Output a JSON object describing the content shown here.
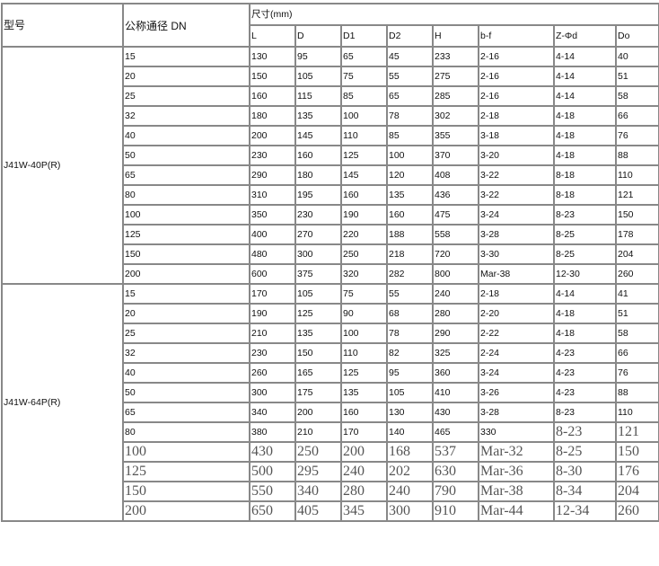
{
  "header": {
    "model": "型号",
    "dn": "公称通径 DN",
    "dimensions": "尺寸(mm)",
    "columns": [
      "L",
      "D",
      "D1",
      "D2",
      "H",
      "b-f",
      "Z-Φd",
      "Do"
    ]
  },
  "groups": [
    {
      "model": "J41W-40P(R)",
      "rows": [
        [
          "15",
          "130",
          "95",
          "65",
          "45",
          "233",
          "2-16",
          "4-14",
          "40"
        ],
        [
          "20",
          "150",
          "105",
          "75",
          "55",
          "275",
          "2-16",
          "4-14",
          "51"
        ],
        [
          "25",
          "160",
          "115",
          "85",
          "65",
          "285",
          "2-16",
          "4-14",
          "58"
        ],
        [
          "32",
          "180",
          "135",
          "100",
          "78",
          "302",
          "2-18",
          "4-18",
          "66"
        ],
        [
          "40",
          "200",
          "145",
          "110",
          "85",
          "355",
          "3-18",
          "4-18",
          "76"
        ],
        [
          "50",
          "230",
          "160",
          "125",
          "100",
          "370",
          "3-20",
          "4-18",
          "88"
        ],
        [
          "65",
          "290",
          "180",
          "145",
          "120",
          "408",
          "3-22",
          "8-18",
          "110"
        ],
        [
          "80",
          "310",
          "195",
          "160",
          "135",
          "436",
          "3-22",
          "8-18",
          "121"
        ],
        [
          "100",
          "350",
          "230",
          "190",
          "160",
          "475",
          "3-24",
          "8-23",
          "150"
        ],
        [
          "125",
          "400",
          "270",
          "220",
          "188",
          "558",
          "3-28",
          "8-25",
          "178"
        ],
        [
          "150",
          "480",
          "300",
          "250",
          "218",
          "720",
          "3-30",
          "8-25",
          "204"
        ],
        [
          "200",
          "600",
          "375",
          "320",
          "282",
          "800",
          "Mar-38",
          "12-30",
          "260"
        ]
      ]
    },
    {
      "model": "J41W-64P(R)",
      "rows": [
        [
          "15",
          "170",
          "105",
          "75",
          "55",
          "240",
          "2-18",
          "4-14",
          "41"
        ],
        [
          "20",
          "190",
          "125",
          "90",
          "68",
          "280",
          "2-20",
          "4-18",
          "51"
        ],
        [
          "25",
          "210",
          "135",
          "100",
          "78",
          "290",
          "2-22",
          "4-18",
          "58"
        ],
        [
          "32",
          "230",
          "150",
          "110",
          "82",
          "325",
          "2-24",
          "4-23",
          "66"
        ],
        [
          "40",
          "260",
          "165",
          "125",
          "95",
          "360",
          "3-24",
          "4-23",
          "76"
        ],
        [
          "50",
          "300",
          "175",
          "135",
          "105",
          "410",
          "3-26",
          "4-23",
          "88"
        ],
        [
          "65",
          "340",
          "200",
          "160",
          "130",
          "430",
          "3-28",
          "8-23",
          "110"
        ],
        [
          "80",
          "380",
          "210",
          "170",
          "140",
          "465",
          "330",
          "8-23",
          "121"
        ],
        [
          "100",
          "430",
          "250",
          "200",
          "168",
          "537",
          "Mar-32",
          "8-25",
          "150"
        ],
        [
          "125",
          "500",
          "295",
          "240",
          "202",
          "630",
          "Mar-36",
          "8-30",
          "176"
        ],
        [
          "150",
          "550",
          "340",
          "280",
          "240",
          "790",
          "Mar-38",
          "8-34",
          "204"
        ],
        [
          "200",
          "650",
          "405",
          "345",
          "300",
          "910",
          "Mar-44",
          "12-34",
          "260"
        ]
      ]
    }
  ]
}
